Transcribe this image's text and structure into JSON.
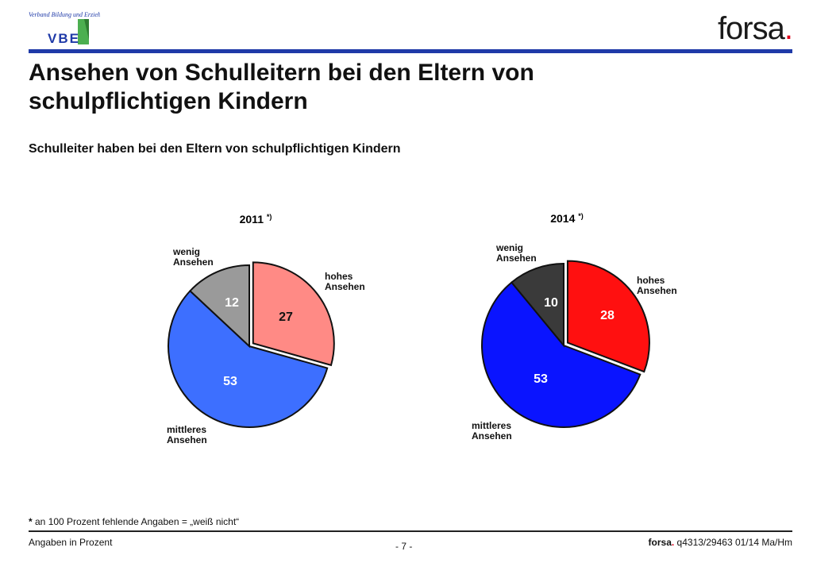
{
  "header": {
    "vbe_logo_text": "Verband Bildung und Erziehung",
    "vbe_logo_letters": "VBE",
    "forsa_logo": "forsa",
    "forsa_dot": "."
  },
  "title": "Ansehen von Schulleitern bei den Eltern von schulpflichtigen Kindern",
  "subtitle": "Schulleiter haben bei den Eltern von schulpflichtigen Kindern",
  "chart_data": [
    {
      "type": "pie",
      "title": "2011 *)",
      "title_main": "2011",
      "title_sup": "*)",
      "slices": [
        {
          "label": "hohes Ansehen",
          "label_lines": [
            "hohes",
            "Ansehen"
          ],
          "value": 27,
          "color": "#ff8a85",
          "exploded": true
        },
        {
          "label": "mittleres Ansehen",
          "label_lines": [
            "mittleres",
            "Ansehen"
          ],
          "value": 53,
          "color": "#3d6fff",
          "exploded": false
        },
        {
          "label": "wenig Ansehen",
          "label_lines": [
            "wenig",
            "Ansehen"
          ],
          "value": 12,
          "color": "#9a9a9a",
          "exploded": false
        }
      ]
    },
    {
      "type": "pie",
      "title": "2014 *)",
      "title_main": "2014",
      "title_sup": "*)",
      "slices": [
        {
          "label": "hohes Ansehen",
          "label_lines": [
            "hohes",
            "Ansehen"
          ],
          "value": 28,
          "color": "#ff1010",
          "exploded": true
        },
        {
          "label": "mittleres Ansehen",
          "label_lines": [
            "mittleres",
            "Ansehen"
          ],
          "value": 53,
          "color": "#0a14ff",
          "exploded": false
        },
        {
          "label": "wenig Ansehen",
          "label_lines": [
            "wenig",
            "Ansehen"
          ],
          "value": 10,
          "color": "#3a3a3a",
          "exploded": false
        }
      ]
    }
  ],
  "footnote": {
    "star": "*",
    "text": " an 100 Prozent fehlende Angaben = „weiß nicht“"
  },
  "footer": {
    "left": "Angaben in Prozent",
    "page": "- 7 -",
    "right_brand": "forsa",
    "right_dot": ".",
    "right_code": " q4313/29463 01/14 Ma/Hm"
  }
}
